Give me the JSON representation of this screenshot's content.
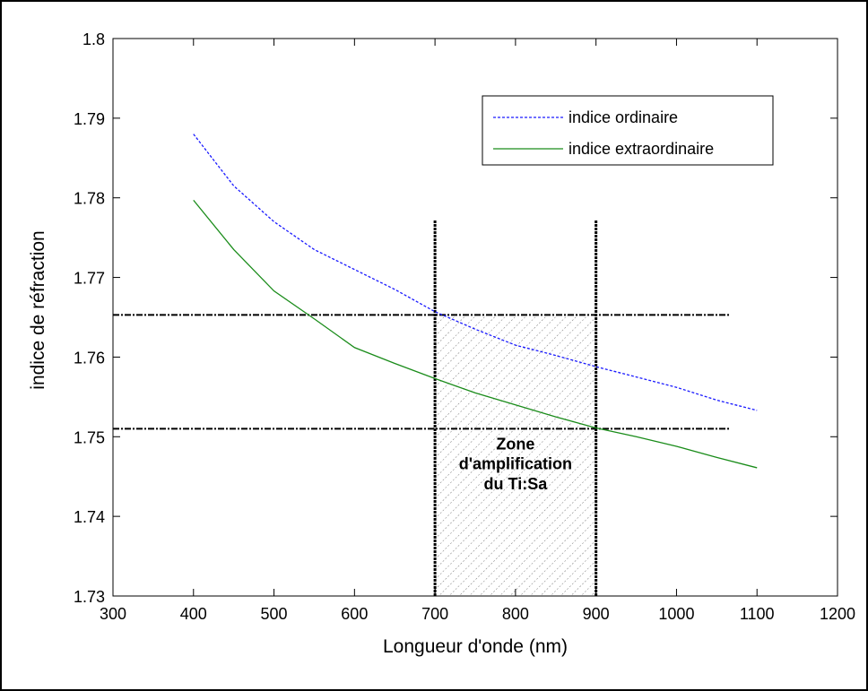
{
  "chart_data": {
    "type": "line",
    "xlabel": "Longueur d'onde (nm)",
    "ylabel": "indice de réfraction",
    "xlim": [
      300,
      1200
    ],
    "ylim": [
      1.73,
      1.8
    ],
    "xticks": [
      300,
      400,
      500,
      600,
      700,
      800,
      900,
      1000,
      1100,
      1200
    ],
    "yticks": [
      1.73,
      1.74,
      1.75,
      1.76,
      1.77,
      1.78,
      1.79,
      1.8
    ],
    "xtick_labels": [
      "300",
      "400",
      "500",
      "600",
      "700",
      "800",
      "900",
      "1000",
      "1100",
      "1200"
    ],
    "ytick_labels": [
      "1.73",
      "1.74",
      "1.75",
      "1.76",
      "1.77",
      "1.78",
      "1.79",
      "1.8"
    ],
    "grid": false,
    "legend_position": "top-right",
    "series": [
      {
        "name": "indice ordinaire",
        "style": "dotted",
        "color": "#1a1aff",
        "x": [
          400,
          450,
          500,
          550,
          600,
          650,
          700,
          750,
          800,
          850,
          900,
          950,
          1000,
          1050,
          1100
        ],
        "values": [
          1.788,
          1.7815,
          1.777,
          1.7735,
          1.771,
          1.7685,
          1.7657,
          1.7635,
          1.7615,
          1.7602,
          1.7588,
          1.7575,
          1.7562,
          1.7546,
          1.7533
        ]
      },
      {
        "name": "indice extraordinaire",
        "style": "solid",
        "color": "#1a8c1a",
        "x": [
          400,
          450,
          500,
          550,
          600,
          650,
          700,
          750,
          800,
          850,
          900,
          950,
          1000,
          1050,
          1100
        ],
        "values": [
          1.7797,
          1.7735,
          1.7683,
          1.7648,
          1.7612,
          1.7592,
          1.7573,
          1.7555,
          1.754,
          1.7525,
          1.7511,
          1.75,
          1.7488,
          1.7474,
          1.7461
        ]
      }
    ],
    "reference_lines": {
      "horizontal": [
        1.7653,
        1.751
      ],
      "horizontal_x_range": [
        300,
        1066
      ],
      "vertical": [
        700,
        900
      ],
      "vertical_y_max": 1.7772
    },
    "shaded_zone": {
      "x_range": [
        700,
        900
      ],
      "y_range": [
        1.73,
        1.7653
      ],
      "hatch_color": "#666666"
    },
    "annotation": {
      "lines": [
        "Zone",
        "d'amplification",
        "du Ti:Sa"
      ],
      "x": 800,
      "y_top": 1.7484,
      "line_step": 0.0025
    },
    "colors": {
      "axis": "#000000",
      "reference_line": "#000000"
    }
  }
}
